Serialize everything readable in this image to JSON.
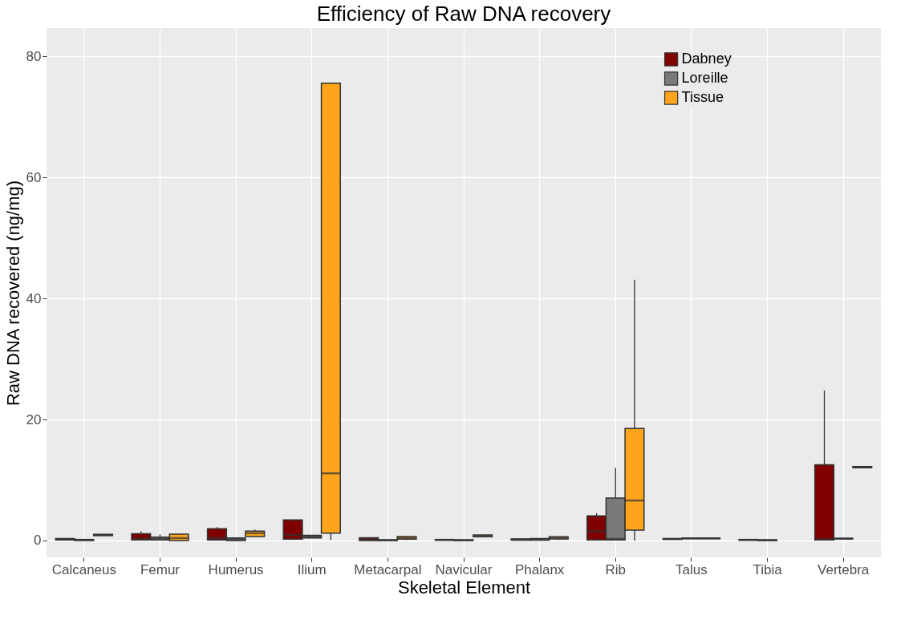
{
  "chart_data": {
    "type": "box",
    "title": "Efficiency of Raw DNA recovery",
    "xlabel": "Skeletal Element",
    "ylabel": "Raw DNA recovered (ng/mg)",
    "categories": [
      "Calcaneus",
      "Femur",
      "Humerus",
      "Ilium",
      "Metacarpal",
      "Navicular",
      "Phalanx",
      "Rib",
      "Talus",
      "Tibia",
      "Vertebra"
    ],
    "ylim": [
      -2.8,
      84.7
    ],
    "yticks": [
      0,
      20,
      40,
      60,
      80
    ],
    "grid": true,
    "legend": "top right",
    "series": [
      {
        "name": "Dabney",
        "color": "#800000",
        "boxes": [
          {
            "low": 0.1,
            "q1": 0.1,
            "median": 0.2,
            "q3": 0.3,
            "high": 0.3
          },
          {
            "low": 0.1,
            "q1": 0.1,
            "median": 0.3,
            "q3": 1.1,
            "high": 1.5
          },
          {
            "low": 0.1,
            "q1": 0.1,
            "median": 0.4,
            "q3": 1.95,
            "high": 2.2
          },
          {
            "low": 0.2,
            "q1": 0.2,
            "median": 0.9,
            "q3": 3.4,
            "high": 3.4
          },
          {
            "low": 0,
            "q1": 0,
            "median": 0.2,
            "q3": 0.45,
            "high": 0.45
          },
          {
            "low": 0.05,
            "q1": 0.05,
            "median": 0.1,
            "q3": 0.15,
            "high": 0.15
          },
          {
            "low": 0.05,
            "q1": 0.05,
            "median": 0.15,
            "q3": 0.25,
            "high": 0.3
          },
          {
            "low": 0.1,
            "q1": 0.1,
            "median": 1.5,
            "q3": 4.05,
            "high": 4.5
          },
          {
            "low": 0.2,
            "q1": 0.2,
            "median": 0.25,
            "q3": 0.3,
            "high": 0.3
          },
          {
            "low": 0.05,
            "q1": 0.05,
            "median": 0.1,
            "q3": 0.15,
            "high": 0.15
          },
          {
            "low": 0.1,
            "q1": 0.1,
            "median": 0.2,
            "q3": 12.5,
            "high": 24.8
          }
        ]
      },
      {
        "name": "Loreille",
        "color": "#7a7a7a",
        "boxes": [
          {
            "low": 0,
            "q1": 0,
            "median": 0.1,
            "q3": 0.15,
            "high": 0.15
          },
          {
            "low": 0.1,
            "q1": 0.1,
            "median": 0.3,
            "q3": 0.55,
            "high": 1.0
          },
          {
            "low": 0,
            "q1": 0,
            "median": 0.2,
            "q3": 0.4,
            "high": 0.4
          },
          {
            "low": 0.4,
            "q1": 0.4,
            "median": 0.6,
            "q3": 0.85,
            "high": 0.85
          },
          {
            "low": 0,
            "q1": 0,
            "median": 0.05,
            "q3": 0.1,
            "high": 0.1
          },
          {
            "low": 0,
            "q1": 0,
            "median": 0.05,
            "q3": 0.1,
            "high": 0.1
          },
          {
            "low": 0.05,
            "q1": 0.05,
            "median": 0.2,
            "q3": 0.3,
            "high": 0.3
          },
          {
            "low": 0.1,
            "q1": 0.1,
            "median": 0.25,
            "q3": 7.0,
            "high": 12.0
          },
          {
            "low": 0.3,
            "q1": 0.3,
            "median": 0.35,
            "q3": 0.4,
            "high": 0.4
          },
          {
            "low": 0,
            "q1": 0,
            "median": 0.05,
            "q3": 0.1,
            "high": 0.1
          },
          {
            "low": 0.25,
            "q1": 0.25,
            "median": 0.3,
            "q3": 0.35,
            "high": 0.35
          }
        ]
      },
      {
        "name": "Tissue",
        "color": "#ffa51c",
        "boxes": [
          {
            "low": 0.8,
            "q1": 0.8,
            "median": 0.9,
            "q3": 1.0,
            "high": 1.0
          },
          {
            "low": 0,
            "q1": 0,
            "median": 0.4,
            "q3": 1.05,
            "high": 1.05
          },
          {
            "low": 0.65,
            "q1": 0.65,
            "median": 1.2,
            "q3": 1.55,
            "high": 1.8
          },
          {
            "low": 0.1,
            "q1": 1.2,
            "median": 11.1,
            "q3": 75.6,
            "high": 75.6
          },
          {
            "low": 0.1,
            "q1": 0.2,
            "median": 0.4,
            "q3": 0.65,
            "high": 0.65
          },
          {
            "low": 0.6,
            "q1": 0.6,
            "median": 0.75,
            "q3": 0.9,
            "high": 0.9
          },
          {
            "low": 0.1,
            "q1": 0.25,
            "median": 0.4,
            "q3": 0.6,
            "high": 0.6
          },
          {
            "low": 0,
            "q1": 1.7,
            "median": 6.6,
            "q3": 18.5,
            "high": 43.1
          },
          {
            "low": 0.3,
            "q1": 0.3,
            "median": 0.35,
            "q3": 0.4,
            "high": 0.4
          },
          null,
          {
            "low": 12.0,
            "q1": 12.0,
            "median": 12.1,
            "q3": 12.2,
            "high": 12.2
          }
        ]
      }
    ]
  }
}
